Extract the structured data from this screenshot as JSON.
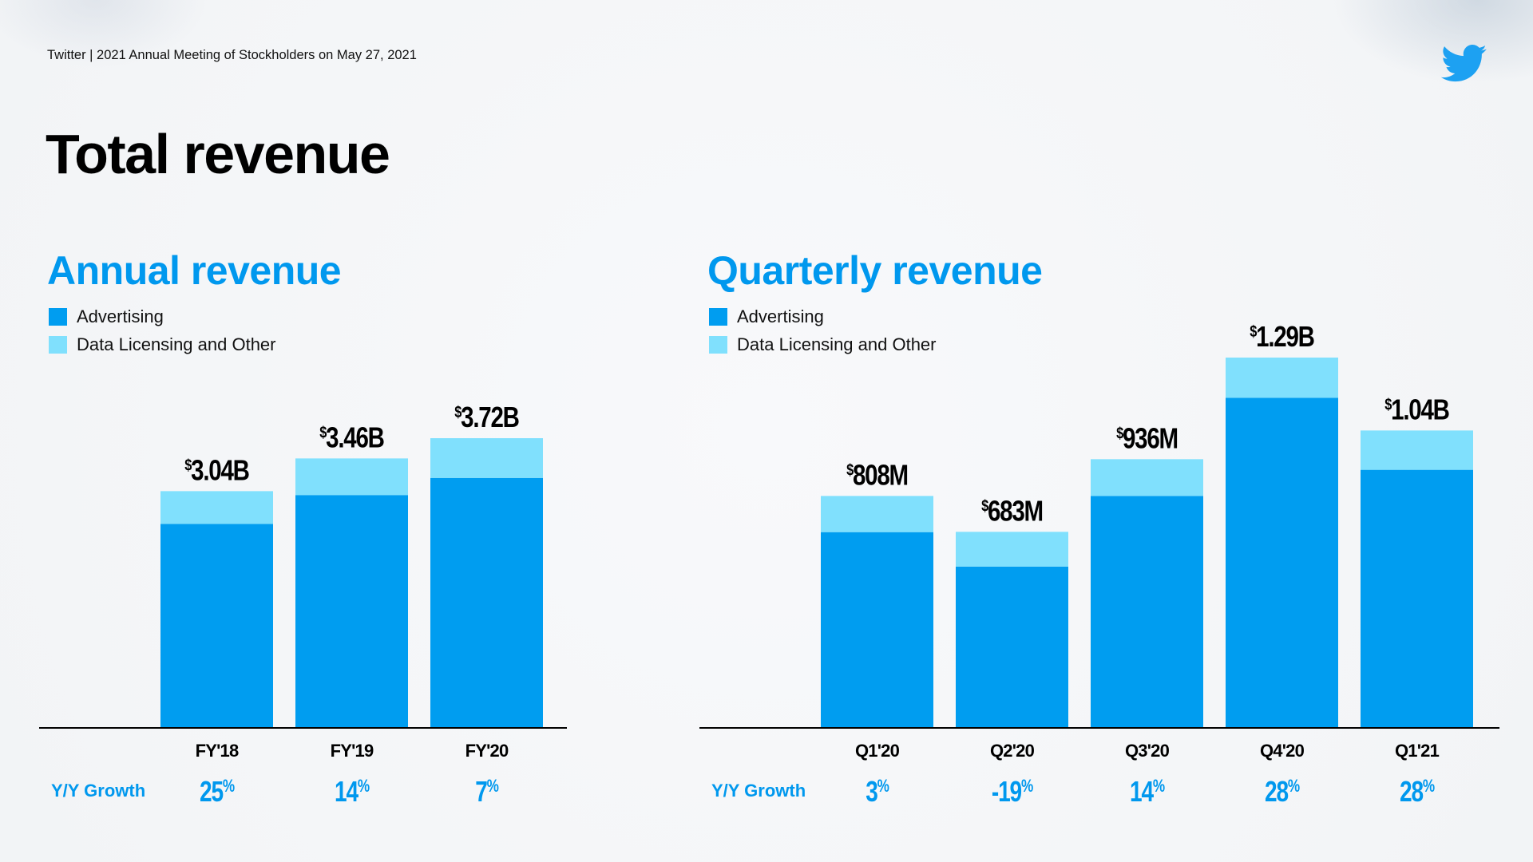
{
  "header": {
    "text": "Twitter | 2021 Annual Meeting of Stockholders on May 27, 2021",
    "logo_icon": "twitter-bird-icon"
  },
  "page_title": "Total revenue",
  "colors": {
    "advertising": "#009DF0",
    "data_licensing": "#80E0FD",
    "accent": "#0098EE",
    "text": "#000000"
  },
  "growth_label": "Y/Y Growth",
  "chart_data": [
    {
      "type": "bar",
      "stacked": true,
      "title": "Annual revenue",
      "legend": [
        "Advertising",
        "Data Licensing and Other"
      ],
      "legend_position": "top-left",
      "categories": [
        "FY'18",
        "FY'19",
        "FY'20"
      ],
      "series": [
        {
          "name": "Advertising",
          "values": [
            2.62,
            2.99,
            3.21
          ]
        },
        {
          "name": "Data Licensing and Other",
          "values": [
            0.42,
            0.47,
            0.51
          ]
        }
      ],
      "totals_labels": [
        "3.04B",
        "3.46B",
        "3.72B"
      ],
      "totals": [
        3.04,
        3.46,
        3.72
      ],
      "unit": "$B",
      "growth": [
        "25%",
        "14%",
        "7%"
      ],
      "ylim": [
        0,
        4.4
      ],
      "xlabel": "",
      "ylabel": "",
      "grid": false
    },
    {
      "type": "bar",
      "stacked": true,
      "title": "Quarterly revenue",
      "legend": [
        "Advertising",
        "Data Licensing and Other"
      ],
      "legend_position": "top-left",
      "categories": [
        "Q1'20",
        "Q2'20",
        "Q3'20",
        "Q4'20",
        "Q1'21"
      ],
      "series": [
        {
          "name": "Advertising",
          "values": [
            682,
            562,
            808,
            1150,
            899
          ]
        },
        {
          "name": "Data Licensing and Other",
          "values": [
            126,
            121,
            128,
            140,
            137
          ]
        }
      ],
      "totals_labels": [
        "808M",
        "683M",
        "936M",
        "1.29B",
        "1.04B"
      ],
      "totals": [
        808,
        683,
        936,
        1290,
        1040
      ],
      "unit": "$M",
      "growth": [
        "3%",
        "-19%",
        "14%",
        "28%",
        "28%"
      ],
      "ylim": [
        0,
        1450
      ],
      "xlabel": "",
      "ylabel": "",
      "grid": false
    }
  ]
}
